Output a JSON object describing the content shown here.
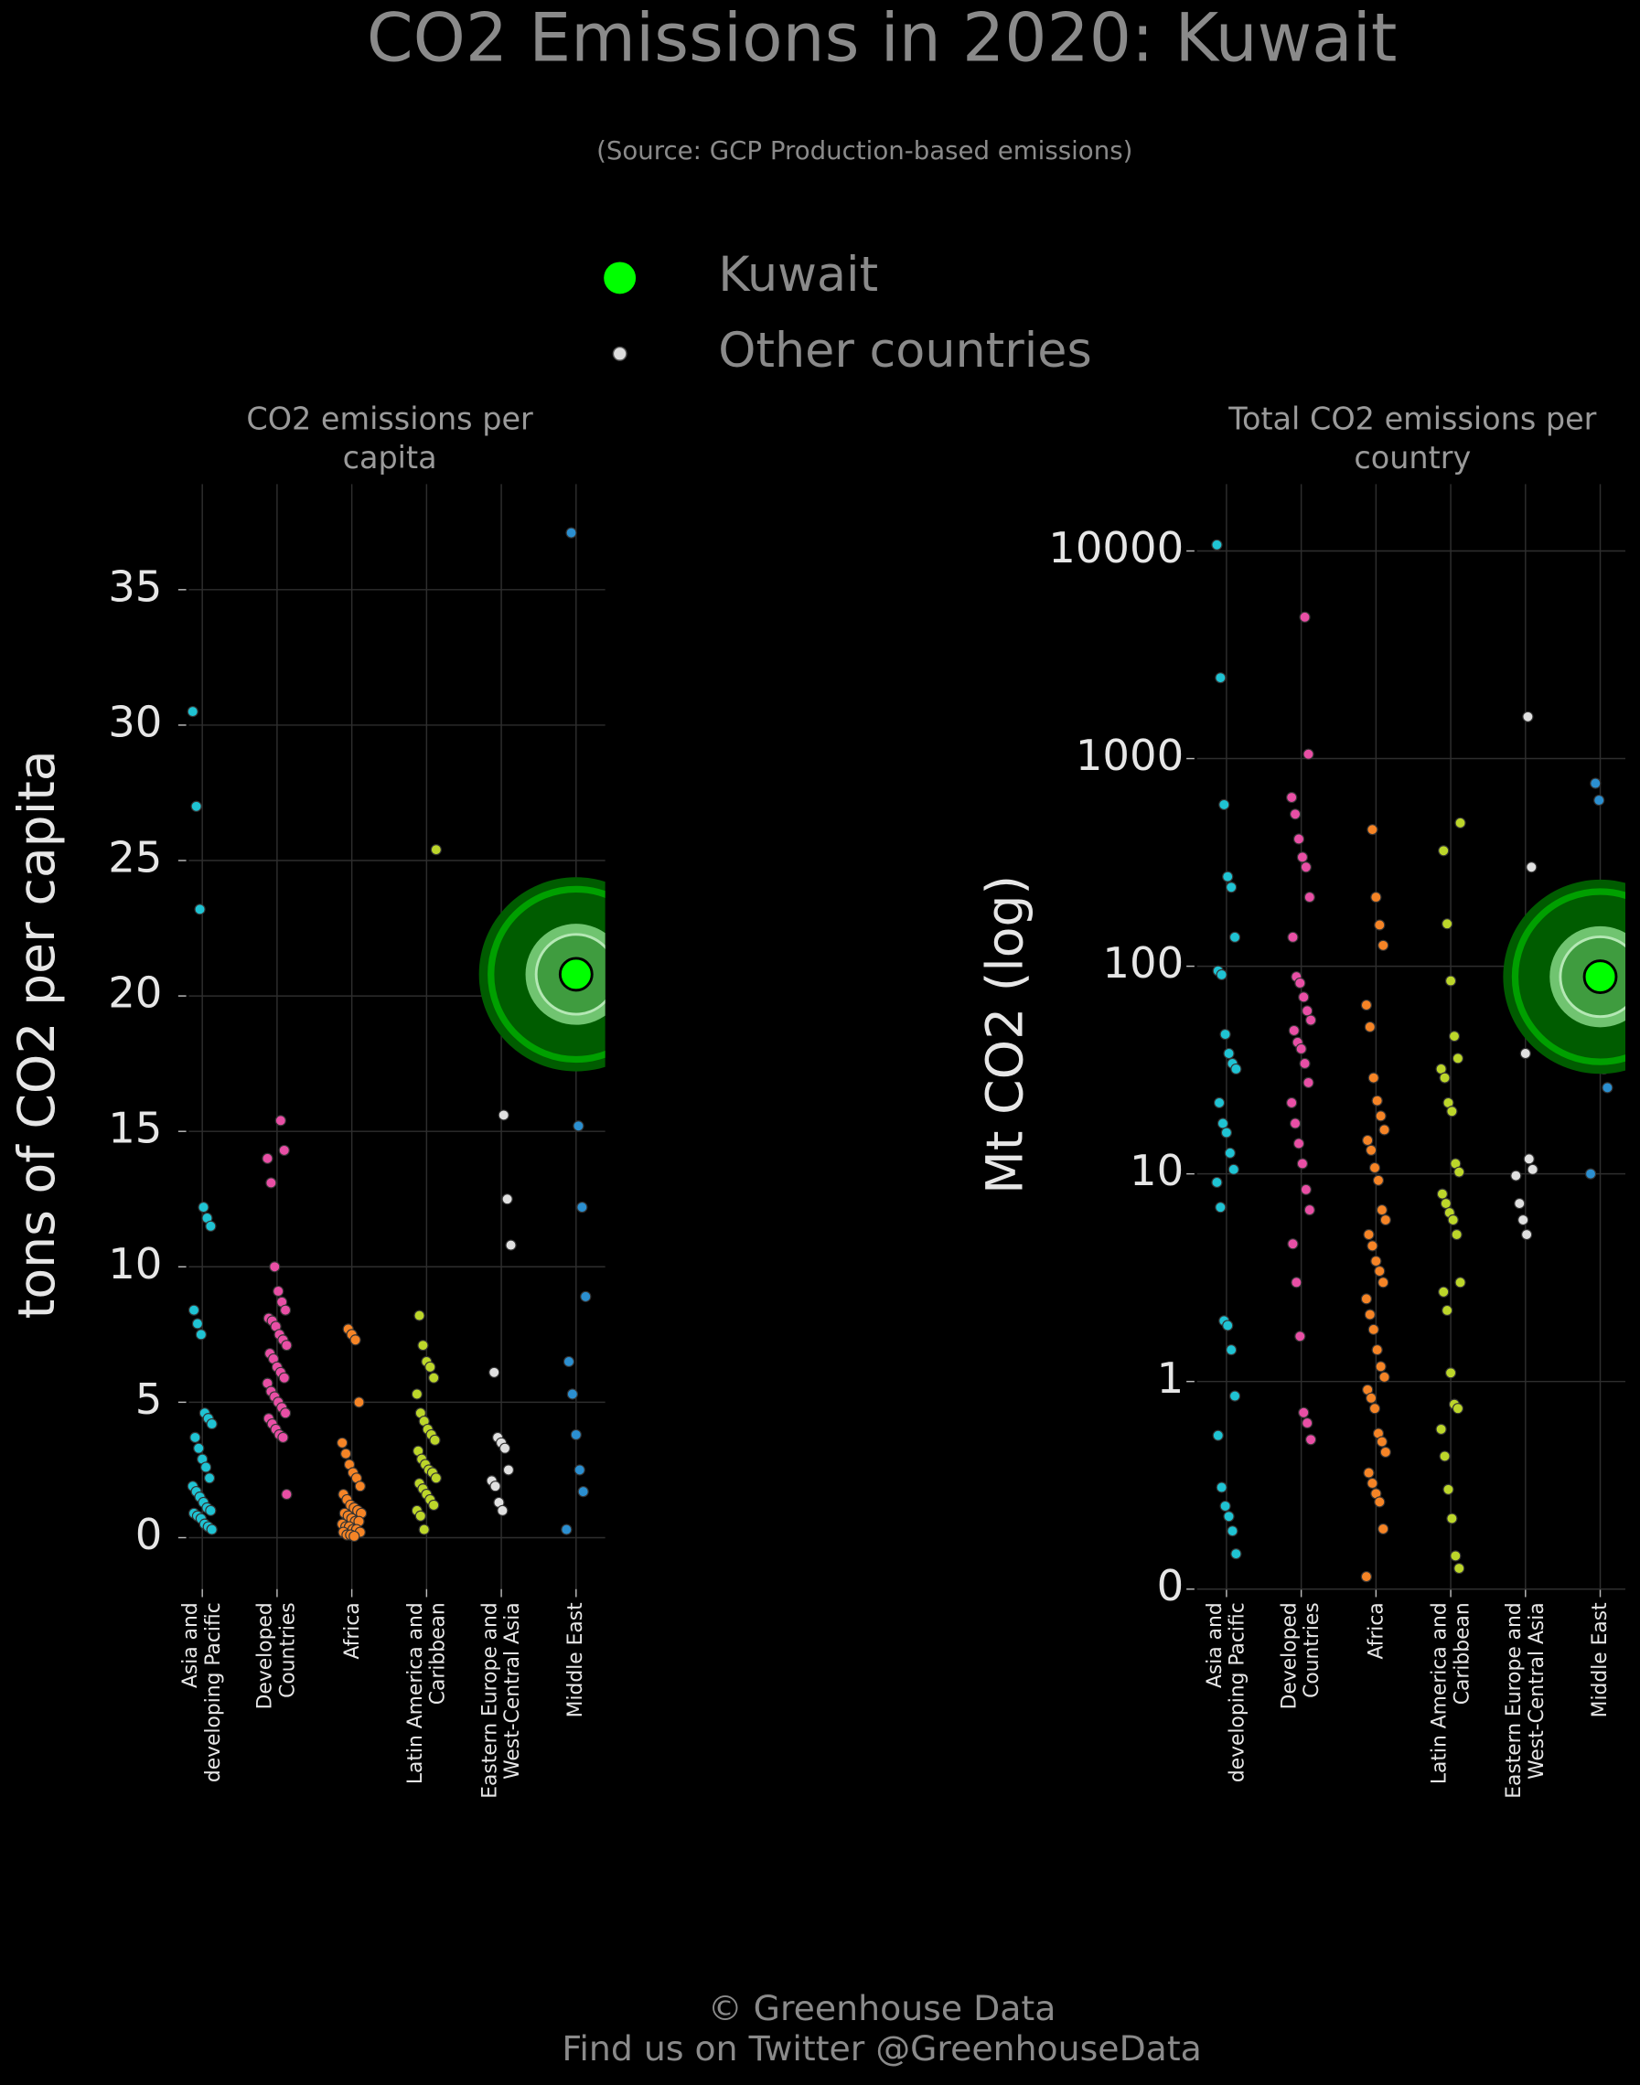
{
  "title": "CO2 Emissions in 2020: Kuwait",
  "subtitle": "(Source: GCP Production-based emissions)",
  "legend": [
    {
      "name": "Kuwait",
      "color": "#00ff00"
    },
    {
      "name": "Other countries",
      "color": "#dddddd"
    }
  ],
  "footer": [
    "© Greenhouse Data",
    "Find us on Twitter @GreenhouseData"
  ],
  "chart_data": [
    {
      "type": "strip",
      "title": "CO2 emissions per capita",
      "ylabel": "tons of CO2 per capita",
      "categories": [
        "Asia and developing Pacific",
        "Developed Countries",
        "Africa",
        "Latin America and Caribbean",
        "Eastern Europe and West-Central Asia",
        "Middle East"
      ],
      "colors": [
        "#1fc3d3",
        "#e84fa5",
        "#f58426",
        "#bcd62a",
        "#e0e0e0",
        "#2b8fd0"
      ],
      "values": [
        [
          30.5,
          27.0,
          23.2,
          12.2,
          11.8,
          11.5,
          8.4,
          7.9,
          7.5,
          4.6,
          4.4,
          4.2,
          3.7,
          3.3,
          2.9,
          2.6,
          2.2,
          1.9,
          1.7,
          1.5,
          1.3,
          1.1,
          1.0,
          0.9,
          0.8,
          0.7,
          0.5,
          0.4,
          0.3
        ],
        [
          15.4,
          14.3,
          14.0,
          13.1,
          10.0,
          9.1,
          8.7,
          8.4,
          8.1,
          8.0,
          7.8,
          7.5,
          7.3,
          7.1,
          6.8,
          6.6,
          6.3,
          6.1,
          5.9,
          5.7,
          5.4,
          5.2,
          5.0,
          4.8,
          4.6,
          4.4,
          4.2,
          4.0,
          3.8,
          3.7,
          1.6
        ],
        [
          7.7,
          7.5,
          7.3,
          5.0,
          3.5,
          3.1,
          2.7,
          2.4,
          2.2,
          1.9,
          1.6,
          1.4,
          1.2,
          1.1,
          1.0,
          0.9,
          0.9,
          0.8,
          0.7,
          0.6,
          0.6,
          0.5,
          0.4,
          0.4,
          0.3,
          0.3,
          0.2,
          0.2,
          0.1,
          0.1,
          0.05
        ],
        [
          25.4,
          8.2,
          7.1,
          6.5,
          6.3,
          5.9,
          5.3,
          4.6,
          4.3,
          4.0,
          3.8,
          3.6,
          3.2,
          2.9,
          2.7,
          2.5,
          2.4,
          2.2,
          2.0,
          1.8,
          1.6,
          1.4,
          1.2,
          1.0,
          0.8,
          0.3
        ],
        [
          15.6,
          12.5,
          10.8,
          6.1,
          3.7,
          3.5,
          3.3,
          2.5,
          2.1,
          1.9,
          1.3,
          1.0
        ],
        [
          37.1,
          18.0,
          15.2,
          12.2,
          8.9,
          6.5,
          5.3,
          3.8,
          2.5,
          1.7,
          0.3
        ]
      ],
      "highlight": {
        "category": "Middle East",
        "value": 20.8
      },
      "ylim": [
        -1.9,
        38.9
      ],
      "yticks": [
        0,
        5,
        10,
        15,
        20,
        25,
        30,
        35
      ],
      "grid": true
    },
    {
      "type": "strip",
      "title": "Total CO2 emissions per country",
      "ylabel": "Mt CO2 (log)",
      "categories": [
        "Asia and developing Pacific",
        "Developed Countries",
        "Africa",
        "Latin America and Caribbean",
        "Eastern Europe and West-Central Asia",
        "Middle East"
      ],
      "colors": [
        "#1fc3d3",
        "#e84fa5",
        "#f58426",
        "#bcd62a",
        "#e0e0e0",
        "#2b8fd0"
      ],
      "values": [
        [
          10700,
          2450,
          600,
          270,
          240,
          138,
          95,
          91,
          47,
          38,
          34,
          32,
          22,
          17.5,
          15.8,
          12.6,
          10.5,
          9.1,
          6.9,
          1.96,
          1.86,
          1.42,
          0.93,
          0.74,
          0.49,
          0.4,
          0.35,
          0.28,
          0.17
        ],
        [
          4800,
          1050,
          650,
          540,
          410,
          335,
          300,
          215,
          138,
          89,
          83,
          71,
          61,
          55,
          49,
          43,
          40,
          34,
          27.5,
          22,
          17.5,
          14,
          11.2,
          8.4,
          6.7,
          4.6,
          3.0,
          1.65,
          0.85,
          0.8,
          0.72
        ],
        [
          455,
          215,
          158,
          126,
          65,
          51,
          29,
          22.5,
          19,
          16.3,
          14.5,
          13,
          10.7,
          9.3,
          6.7,
          6.0,
          5.1,
          4.5,
          3.8,
          3.4,
          3.0,
          2.5,
          2.1,
          1.78,
          1.42,
          1.18,
          1.05,
          0.96,
          0.92,
          0.87,
          0.75,
          0.71,
          0.66,
          0.56,
          0.51,
          0.46,
          0.42,
          0.29,
          0.06
        ],
        [
          490,
          360,
          160,
          85,
          46,
          36,
          32,
          29,
          22,
          20,
          11.2,
          10.2,
          8.0,
          7.2,
          6.5,
          6.0,
          5.1,
          3.0,
          2.7,
          2.2,
          1.1,
          0.89,
          0.87,
          0.77,
          0.64,
          0.48,
          0.34,
          0.16,
          0.1
        ],
        [
          1590,
          300,
          114,
          76,
          58,
          38,
          11.8,
          10.5,
          9.8,
          7.2,
          6.0,
          5.1
        ],
        [
          760,
          630,
          215,
          155,
          107,
          61,
          58,
          35,
          32,
          26,
          10
        ]
      ],
      "highlight": {
        "category": "Middle East",
        "value": 89
      },
      "yscale": "symlog",
      "linthresh": 1,
      "ylim": [
        0,
        21000
      ],
      "yticks": [
        0,
        1,
        10,
        100,
        1000,
        10000
      ],
      "grid": true
    }
  ]
}
